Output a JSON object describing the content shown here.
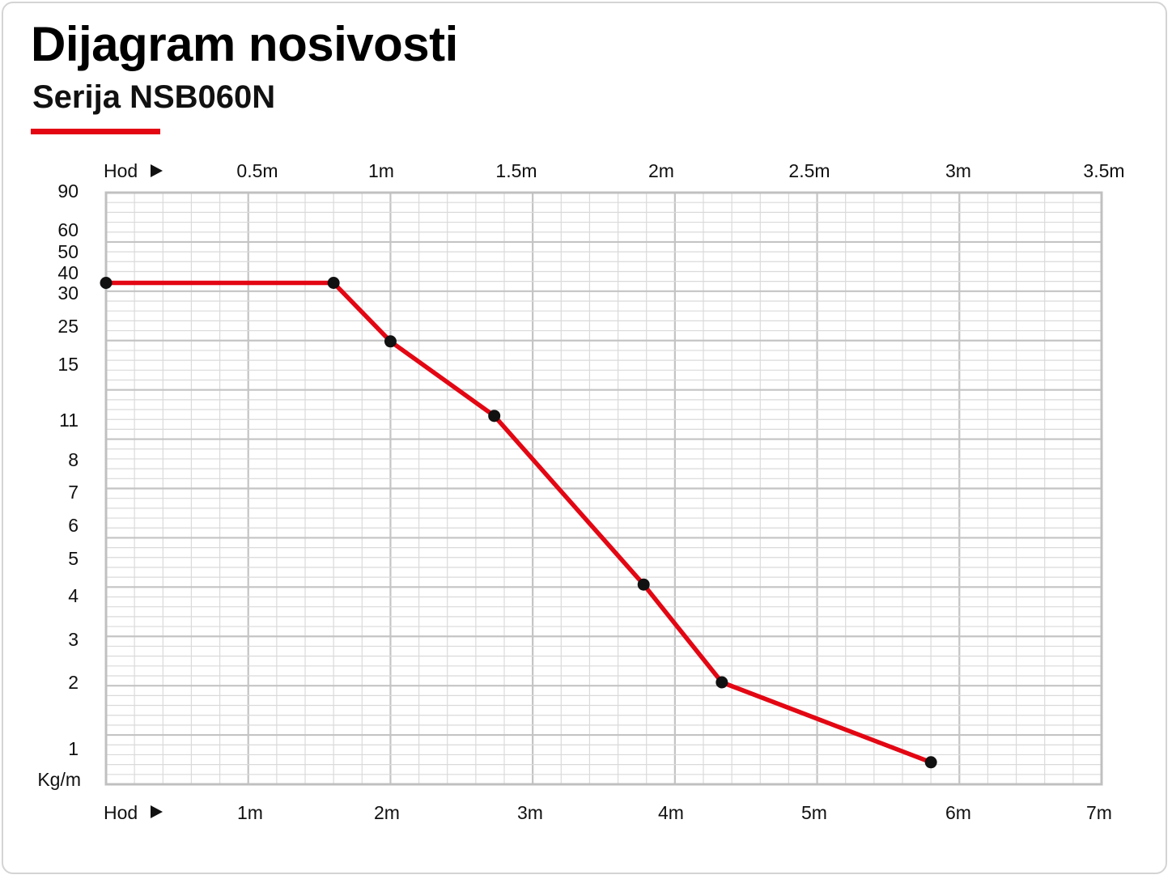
{
  "header": {
    "title": "Dijagram nosivosti",
    "subtitle": "Serija NSB060N"
  },
  "colors": {
    "accent": "#e30613",
    "series": "#e30613",
    "marker": "#111111",
    "grid_major": "#c4c4c4",
    "grid_minor": "#dadada"
  },
  "chart_data": {
    "type": "line",
    "grid": true,
    "y_label": "Kg/m",
    "y_scale": "categorical-ticks",
    "y_ticks": [
      "90",
      "60",
      "50",
      "40",
      "30",
      "25",
      "15",
      "11",
      "8",
      "7",
      "6",
      "5",
      "4",
      "3",
      "2",
      "1"
    ],
    "top_axis": {
      "label": "Hod",
      "ticks": [
        "0.5m",
        "1m",
        "1.5m",
        "2m",
        "2.5m",
        "3m",
        "3.5m"
      ]
    },
    "bottom_axis": {
      "label": "Hod",
      "ticks": [
        "1m",
        "2m",
        "3m",
        "4m",
        "5m",
        "6m",
        "7m"
      ]
    },
    "x_range_m": [
      0,
      7
    ],
    "series": [
      {
        "points": [
          {
            "x": 0.0,
            "y": 35
          },
          {
            "x": 1.6,
            "y": 35
          },
          {
            "x": 2.0,
            "y": 21
          },
          {
            "x": 2.73,
            "y": 11.3
          },
          {
            "x": 3.78,
            "y": 4.3
          },
          {
            "x": 4.33,
            "y": 2.0
          },
          {
            "x": 5.8,
            "y": 0.9
          }
        ]
      }
    ]
  }
}
